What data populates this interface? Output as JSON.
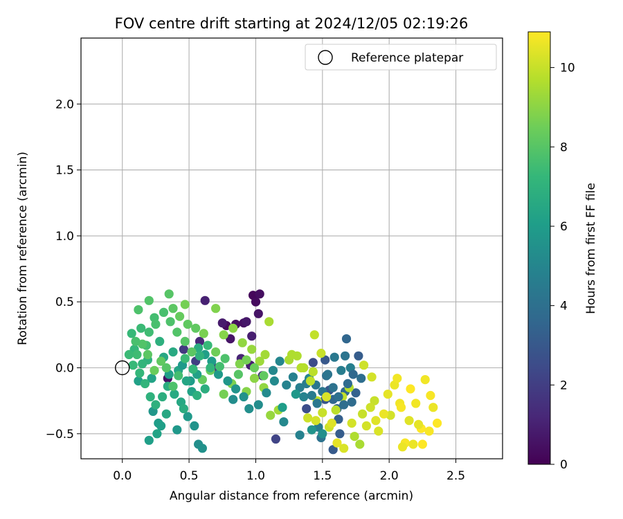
{
  "chart_data": {
    "type": "scatter",
    "title": "FOV centre drift starting at 2024/12/05 02:19:26",
    "xlabel": "Angular distance from reference (arcmin)",
    "ylabel": "Rotation from reference (arcmin)",
    "xlim": [
      -0.31,
      2.85
    ],
    "ylim": [
      -0.69,
      2.5
    ],
    "x_ticks": [
      0.0,
      0.5,
      1.0,
      1.5,
      2.0,
      2.5
    ],
    "x_tick_labels": [
      "0.0",
      "0.5",
      "1.0",
      "1.5",
      "2.0",
      "2.5"
    ],
    "y_ticks": [
      -0.5,
      0.0,
      0.5,
      1.0,
      1.5,
      2.0
    ],
    "y_tick_labels": [
      "−0.5",
      "0.0",
      "0.5",
      "1.0",
      "1.5",
      "2.0"
    ],
    "grid": true,
    "legend": {
      "placement": "upper right",
      "entries": [
        "Reference platepar"
      ]
    },
    "reference_point": {
      "x": 0.0,
      "y": 0.0,
      "label": "Reference platepar"
    },
    "colorbar": {
      "label": "Hours from first FF file",
      "colormap": "viridis",
      "range": [
        0,
        10.9
      ],
      "ticks": [
        0,
        2,
        4,
        6,
        8,
        10
      ],
      "tick_labels": [
        "0",
        "2",
        "4",
        "6",
        "8",
        "10"
      ]
    },
    "points": [
      [
        0.98,
        0.55,
        0.2
      ],
      [
        1.0,
        0.5,
        0.3
      ],
      [
        1.03,
        0.56,
        0.4
      ],
      [
        1.02,
        0.41,
        0.6
      ],
      [
        0.91,
        0.34,
        0.5
      ],
      [
        0.85,
        0.33,
        0.4
      ],
      [
        0.78,
        0.32,
        0.3
      ],
      [
        0.93,
        0.35,
        0.7
      ],
      [
        0.75,
        0.34,
        0.8
      ],
      [
        0.81,
        0.22,
        0.6
      ],
      [
        0.97,
        0.24,
        0.9
      ],
      [
        0.62,
        0.51,
        1.0
      ],
      [
        0.58,
        0.2,
        1.2
      ],
      [
        0.89,
        0.07,
        1.1
      ],
      [
        0.96,
        0.02,
        0.9
      ],
      [
        1.05,
        -0.06,
        1.3
      ],
      [
        0.69,
        0.0,
        1.5
      ],
      [
        0.34,
        -0.08,
        0.5
      ],
      [
        0.46,
        0.14,
        1.8
      ],
      [
        0.55,
        0.05,
        2.0
      ],
      [
        1.15,
        -0.54,
        2.2
      ],
      [
        1.43,
        0.04,
        2.5
      ],
      [
        1.38,
        -0.31,
        2.6
      ],
      [
        1.52,
        -0.24,
        2.9
      ],
      [
        1.58,
        -0.62,
        3.1
      ],
      [
        1.68,
        0.22,
        3.6
      ],
      [
        1.62,
        -0.39,
        3.3
      ],
      [
        1.55,
        -0.17,
        3.0
      ],
      [
        1.72,
        -0.26,
        3.8
      ],
      [
        1.75,
        -0.19,
        3.4
      ],
      [
        1.79,
        -0.08,
        3.9
      ],
      [
        1.67,
        -0.18,
        3.7
      ],
      [
        1.61,
        -0.31,
        3.5
      ],
      [
        1.53,
        -0.06,
        4.0
      ],
      [
        1.49,
        -0.53,
        4.1
      ],
      [
        1.67,
        0.09,
        4.2
      ],
      [
        1.77,
        0.09,
        3.2
      ],
      [
        1.45,
        -0.13,
        4.3
      ],
      [
        1.59,
        0.08,
        4.4
      ],
      [
        1.64,
        -0.02,
        4.6
      ],
      [
        1.52,
        0.06,
        3.0
      ],
      [
        1.71,
        0.0,
        4.7
      ],
      [
        1.58,
        -0.24,
        3.6
      ],
      [
        1.47,
        -0.45,
        4.5
      ],
      [
        1.33,
        -0.51,
        4.8
      ],
      [
        1.36,
        -0.22,
        4.9
      ],
      [
        1.4,
        -0.08,
        5.0
      ],
      [
        1.21,
        -0.41,
        5.1
      ],
      [
        1.14,
        -0.1,
        5.2
      ],
      [
        0.83,
        -0.24,
        5.3
      ],
      [
        0.57,
        -0.58,
        5.4
      ],
      [
        0.6,
        -0.61,
        5.5
      ],
      [
        0.54,
        -0.44,
        5.6
      ],
      [
        0.41,
        -0.47,
        5.8
      ],
      [
        0.49,
        -0.37,
        5.9
      ],
      [
        0.27,
        -0.42,
        6.0
      ],
      [
        0.29,
        -0.44,
        6.1
      ],
      [
        0.23,
        -0.33,
        5.7
      ],
      [
        0.12,
        -0.1,
        6.2
      ],
      [
        0.22,
        -0.08,
        6.3
      ],
      [
        0.35,
        -0.05,
        6.1
      ],
      [
        0.42,
        -0.02,
        6.4
      ],
      [
        0.31,
        0.08,
        6.5
      ],
      [
        0.38,
        0.12,
        6.6
      ],
      [
        0.45,
        0.02,
        5.9
      ],
      [
        0.51,
        -0.1,
        6.0
      ],
      [
        0.57,
        0.15,
        6.7
      ],
      [
        0.62,
        -0.16,
        6.8
      ],
      [
        0.28,
        0.2,
        6.9
      ],
      [
        0.19,
        0.06,
        7.0
      ],
      [
        0.15,
        0.03,
        7.1
      ],
      [
        0.09,
        0.14,
        7.2
      ],
      [
        0.07,
        0.26,
        7.3
      ],
      [
        0.14,
        0.3,
        7.4
      ],
      [
        0.2,
        0.27,
        7.5
      ],
      [
        0.24,
        0.38,
        7.6
      ],
      [
        0.31,
        0.42,
        7.7
      ],
      [
        0.36,
        0.35,
        7.8
      ],
      [
        0.41,
        0.27,
        7.9
      ],
      [
        0.47,
        0.2,
        8.0
      ],
      [
        0.52,
        0.12,
        8.1
      ],
      [
        0.55,
        0.3,
        8.2
      ],
      [
        0.6,
        -0.09,
        8.3
      ],
      [
        0.66,
        -0.02,
        8.4
      ],
      [
        0.7,
        0.12,
        8.5
      ],
      [
        0.76,
        -0.2,
        8.6
      ],
      [
        0.82,
        -0.12,
        8.7
      ],
      [
        0.88,
        0.03,
        8.8
      ],
      [
        0.93,
        -0.18,
        8.9
      ],
      [
        0.99,
        -0.08,
        9.0
      ],
      [
        1.06,
        -0.15,
        9.1
      ],
      [
        1.11,
        -0.36,
        9.2
      ],
      [
        1.17,
        -0.32,
        9.4
      ],
      [
        1.25,
        0.06,
        9.5
      ],
      [
        1.31,
        0.09,
        9.6
      ],
      [
        1.36,
        0.0,
        9.7
      ],
      [
        1.43,
        -0.03,
        9.8
      ],
      [
        1.46,
        -0.25,
        9.9
      ],
      [
        1.5,
        -0.34,
        10.0
      ],
      [
        1.55,
        -0.45,
        10.1
      ],
      [
        1.6,
        -0.32,
        9.8
      ],
      [
        1.65,
        -0.22,
        9.9
      ],
      [
        1.7,
        -0.15,
        9.7
      ],
      [
        1.74,
        -0.52,
        9.6
      ],
      [
        1.78,
        -0.58,
        9.5
      ],
      [
        1.83,
        -0.44,
        10.2
      ],
      [
        1.89,
        -0.25,
        10.0
      ],
      [
        1.92,
        -0.48,
        10.3
      ],
      [
        1.99,
        -0.2,
        10.5
      ],
      [
        2.04,
        -0.13,
        10.6
      ],
      [
        2.08,
        -0.27,
        10.7
      ],
      [
        2.12,
        -0.57,
        10.8
      ],
      [
        2.18,
        -0.58,
        10.6
      ],
      [
        2.24,
        -0.46,
        10.9
      ],
      [
        2.27,
        -0.09,
        10.7
      ],
      [
        2.31,
        -0.21,
        10.8
      ],
      [
        2.36,
        -0.42,
        10.9
      ],
      [
        2.22,
        -0.43,
        10.5
      ],
      [
        2.15,
        -0.4,
        10.4
      ],
      [
        2.1,
        -0.6,
        10.6
      ],
      [
        2.01,
        -0.36,
        10.2
      ],
      [
        0.38,
        0.45,
        8.1
      ],
      [
        0.43,
        0.39,
        8.3
      ],
      [
        0.49,
        0.33,
        8.2
      ],
      [
        0.35,
        0.56,
        8.0
      ],
      [
        0.2,
        0.51,
        7.9
      ],
      [
        0.12,
        0.44,
        7.8
      ],
      [
        0.25,
        0.33,
        7.7
      ],
      [
        0.18,
        0.17,
        7.6
      ],
      [
        0.11,
        0.1,
        7.5
      ],
      [
        0.05,
        0.1,
        7.4
      ],
      [
        0.08,
        0.02,
        7.3
      ],
      [
        0.13,
        -0.04,
        7.2
      ],
      [
        0.17,
        -0.12,
        7.1
      ],
      [
        0.21,
        -0.22,
        7.0
      ],
      [
        0.25,
        -0.28,
        6.9
      ],
      [
        0.3,
        -0.22,
        6.8
      ],
      [
        0.34,
        -0.14,
        6.7
      ],
      [
        0.39,
        -0.2,
        6.6
      ],
      [
        0.44,
        -0.26,
        6.5
      ],
      [
        0.48,
        -0.1,
        6.4
      ],
      [
        0.52,
        -0.18,
        6.3
      ],
      [
        0.56,
        -0.05,
        6.2
      ],
      [
        0.62,
        0.1,
        6.1
      ],
      [
        0.67,
        0.05,
        6.0
      ],
      [
        0.72,
        -0.05,
        5.9
      ],
      [
        0.79,
        -0.1,
        5.7
      ],
      [
        0.85,
        -0.16,
        5.6
      ],
      [
        0.91,
        -0.22,
        5.5
      ],
      [
        0.95,
        -0.31,
        5.4
      ],
      [
        1.02,
        -0.28,
        5.3
      ],
      [
        1.08,
        -0.19,
        5.2
      ],
      [
        1.13,
        -0.02,
        5.1
      ],
      [
        1.18,
        0.05,
        5.0
      ],
      [
        1.23,
        -0.13,
        4.9
      ],
      [
        1.28,
        -0.07,
        4.8
      ],
      [
        1.33,
        -0.15,
        4.7
      ],
      [
        1.38,
        -0.12,
        4.6
      ],
      [
        1.42,
        -0.21,
        4.5
      ],
      [
        1.46,
        -0.27,
        4.4
      ],
      [
        1.5,
        -0.18,
        4.3
      ],
      [
        1.54,
        -0.05,
        4.2
      ],
      [
        1.58,
        -0.15,
        4.1
      ],
      [
        1.62,
        -0.22,
        4.0
      ],
      [
        1.66,
        -0.28,
        3.9
      ],
      [
        1.69,
        -0.12,
        3.8
      ],
      [
        1.73,
        -0.05,
        3.7
      ],
      [
        1.63,
        -0.5,
        3.2
      ],
      [
        0.47,
        0.48,
        8.6
      ],
      [
        0.61,
        0.26,
        8.7
      ],
      [
        0.7,
        0.45,
        8.8
      ],
      [
        0.76,
        0.25,
        8.9
      ],
      [
        0.83,
        0.3,
        9.0
      ],
      [
        0.9,
        0.19,
        9.1
      ],
      [
        0.97,
        0.14,
        9.2
      ],
      [
        1.03,
        0.05,
        9.3
      ],
      [
        1.07,
        0.1,
        9.4
      ],
      [
        1.1,
        0.35,
        9.5
      ],
      [
        1.27,
        0.1,
        9.6
      ],
      [
        1.34,
        0.0,
        9.7
      ],
      [
        1.41,
        -0.1,
        9.8
      ],
      [
        1.44,
        0.25,
        9.9
      ],
      [
        1.49,
        0.11,
        10.0
      ],
      [
        1.39,
        -0.38,
        10.1
      ],
      [
        1.45,
        -0.4,
        10.2
      ],
      [
        1.53,
        -0.22,
        10.3
      ],
      [
        1.57,
        -0.42,
        10.4
      ],
      [
        1.61,
        -0.57,
        10.5
      ],
      [
        1.66,
        -0.61,
        10.3
      ],
      [
        1.72,
        -0.42,
        10.2
      ],
      [
        1.8,
        -0.35,
        10.0
      ],
      [
        1.86,
        -0.3,
        10.1
      ],
      [
        1.9,
        -0.4,
        10.4
      ],
      [
        1.96,
        -0.35,
        10.6
      ],
      [
        2.06,
        -0.08,
        10.7
      ],
      [
        2.09,
        -0.3,
        10.8
      ],
      [
        2.16,
        -0.16,
        10.9
      ],
      [
        2.2,
        -0.27,
        10.7
      ],
      [
        2.25,
        -0.58,
        10.9
      ],
      [
        2.3,
        -0.48,
        10.8
      ],
      [
        2.33,
        -0.3,
        10.6
      ],
      [
        1.87,
        -0.07,
        10.2
      ],
      [
        1.81,
        0.02,
        10.1
      ],
      [
        0.58,
        0.09,
        7.0
      ],
      [
        0.53,
        -0.01,
        7.2
      ],
      [
        0.47,
        0.07,
        7.4
      ],
      [
        0.42,
        -0.06,
        7.6
      ],
      [
        0.38,
        -0.14,
        7.8
      ],
      [
        0.33,
        0.0,
        8.0
      ],
      [
        0.29,
        0.05,
        8.2
      ],
      [
        0.24,
        -0.02,
        8.4
      ],
      [
        0.19,
        0.1,
        8.1
      ],
      [
        0.15,
        0.18,
        7.9
      ],
      [
        0.1,
        0.2,
        7.7
      ],
      [
        0.64,
        0.17,
        7.3
      ],
      [
        0.66,
        0.0,
        7.1
      ],
      [
        0.56,
        -0.21,
        6.9
      ],
      [
        0.46,
        -0.31,
        6.7
      ],
      [
        0.33,
        -0.35,
        6.5
      ],
      [
        0.26,
        -0.5,
        6.3
      ],
      [
        0.2,
        -0.55,
        6.1
      ],
      [
        1.2,
        -0.3,
        6.0
      ],
      [
        1.3,
        -0.2,
        5.8
      ],
      [
        1.42,
        -0.47,
        5.6
      ],
      [
        1.5,
        -0.5,
        5.4
      ],
      [
        0.93,
        0.06,
        8.6
      ],
      [
        0.99,
        0.0,
        8.4
      ],
      [
        1.06,
        -0.06,
        8.2
      ],
      [
        0.87,
        -0.05,
        8.0
      ],
      [
        0.77,
        0.07,
        7.8
      ],
      [
        0.73,
        0.01,
        7.6
      ]
    ]
  }
}
